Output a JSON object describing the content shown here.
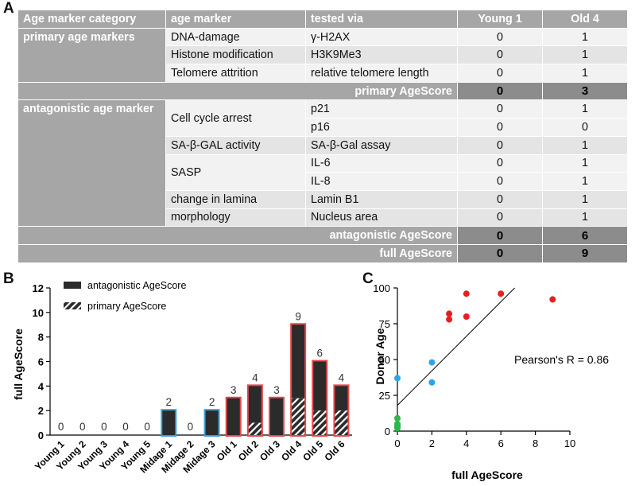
{
  "panel_labels": {
    "a": "A",
    "b": "B",
    "c": "C"
  },
  "table": {
    "headers": [
      "Age marker category",
      "age marker",
      "tested via",
      "Young 1",
      "Old 4"
    ],
    "primary": {
      "category": "primary age markers",
      "rows": [
        {
          "marker": "DNA-damage",
          "via": "γ-H2AX",
          "young": "0",
          "old": "1"
        },
        {
          "marker": "Histone modification",
          "via": "H3K9Me3",
          "young": "0",
          "old": "1"
        },
        {
          "marker": "Telomere attrition",
          "via": "relative telomere length",
          "young": "0",
          "old": "1"
        }
      ],
      "score_label": "primary AgeScore",
      "score_young": "0",
      "score_old": "3"
    },
    "antagonistic": {
      "category": "antagonistic age marker",
      "markers": {
        "cell_cycle": "Cell cycle arrest",
        "sa_gal": "SA-β-GAL activity",
        "sasp": "SASP",
        "lamina1": "change in lamina",
        "lamina2": "morphology"
      },
      "rows": [
        {
          "via": "p21",
          "young": "0",
          "old": "1"
        },
        {
          "via": "p16",
          "young": "0",
          "old": "0"
        },
        {
          "via": "SA-β-Gal assay",
          "young": "0",
          "old": "1"
        },
        {
          "via": "IL-6",
          "young": "0",
          "old": "1"
        },
        {
          "via": "IL-8",
          "young": "0",
          "old": "1"
        },
        {
          "via": "Lamin B1",
          "young": "0",
          "old": "1"
        },
        {
          "via": "Nucleus area",
          "young": "0",
          "old": "1"
        }
      ],
      "score_label": "antagonistic AgeScore",
      "score_young": "0",
      "score_old": "6"
    },
    "full": {
      "label": "full AgeScore",
      "young": "0",
      "old": "9"
    }
  },
  "chart_data": [
    {
      "type": "bar",
      "title": "",
      "ylabel": "full AgeScore",
      "xlabel": "",
      "ylim": [
        0,
        12
      ],
      "yticks": [
        0,
        2,
        4,
        6,
        8,
        10,
        12
      ],
      "categories": [
        "Young 1",
        "Young 2",
        "Young 3",
        "Young 4",
        "Young 5",
        "Midage 1",
        "Midage 2",
        "Midage 3",
        "Old 1",
        "Old 2",
        "Old 3",
        "Old 4",
        "Old 5",
        "Old 6"
      ],
      "series": [
        {
          "name": "antagonistic AgeScore",
          "values": [
            0,
            0,
            0,
            0,
            0,
            2,
            0,
            2,
            3,
            3,
            3,
            6,
            4,
            2
          ]
        },
        {
          "name": "primary AgeScore",
          "values": [
            0,
            0,
            0,
            0,
            0,
            0,
            0,
            0,
            0,
            1,
            0,
            3,
            2,
            2
          ]
        }
      ],
      "totals": [
        0,
        0,
        0,
        0,
        0,
        2,
        0,
        2,
        3,
        4,
        3,
        9,
        6,
        4
      ],
      "outline_colors": [
        "#3aa0dd",
        "#3aa0dd",
        "#3aa0dd",
        "#3aa0dd",
        "#3aa0dd",
        "#3aa0dd",
        "#3aa0dd",
        "#3aa0dd",
        "#e8474a",
        "#e8474a",
        "#e8474a",
        "#e8474a",
        "#e8474a",
        "#e8474a"
      ],
      "legend_position": "top-left"
    },
    {
      "type": "scatter",
      "xlabel": "full AgeScore",
      "ylabel": "Donor Age",
      "xlim": [
        0,
        10
      ],
      "ylim": [
        0,
        100
      ],
      "xticks": [
        0,
        2,
        4,
        6,
        8,
        10
      ],
      "yticks": [
        0,
        25,
        50,
        75,
        100
      ],
      "annotation": "Pearson's R = 0.86",
      "regression": {
        "x0": 0,
        "y0": 18,
        "x1": 6.8,
        "y1": 100
      },
      "points": [
        {
          "x": 0,
          "y": 2,
          "group": "young"
        },
        {
          "x": 0,
          "y": 3,
          "group": "young"
        },
        {
          "x": 0,
          "y": 4,
          "group": "young"
        },
        {
          "x": 0,
          "y": 5,
          "group": "young"
        },
        {
          "x": 0,
          "y": 9,
          "group": "young"
        },
        {
          "x": 0,
          "y": 37,
          "group": "midage"
        },
        {
          "x": 2,
          "y": 48,
          "group": "midage"
        },
        {
          "x": 2,
          "y": 34,
          "group": "midage"
        },
        {
          "x": 3,
          "y": 82,
          "group": "old"
        },
        {
          "x": 3,
          "y": 78,
          "group": "old"
        },
        {
          "x": 4,
          "y": 96,
          "group": "old"
        },
        {
          "x": 4,
          "y": 80,
          "group": "old"
        },
        {
          "x": 6,
          "y": 96,
          "group": "old"
        },
        {
          "x": 9,
          "y": 92,
          "group": "old"
        }
      ],
      "group_colors": {
        "young": "#2db84a",
        "midage": "#2aa6e6",
        "old": "#e81f1f"
      }
    }
  ]
}
